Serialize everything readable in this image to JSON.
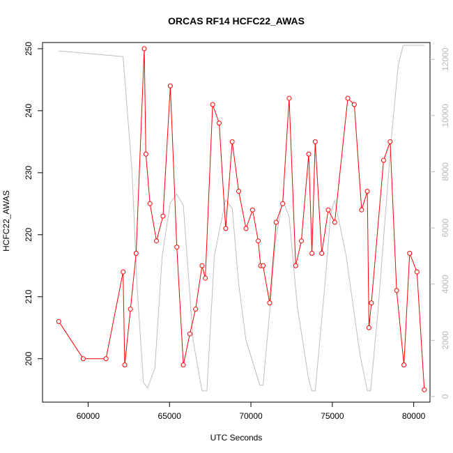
{
  "chart_data": {
    "type": "line",
    "title": "ORCAS RF14 HCFC22_AWAS",
    "xlabel": "UTC Seconds",
    "ylabel": "HCFC22_AWAS",
    "xlim": [
      57200,
      81000
    ],
    "ylim": [
      193,
      251
    ],
    "y2lim": [
      -200,
      12600
    ],
    "x_ticks": [
      60000,
      65000,
      70000,
      75000,
      80000
    ],
    "y_ticks": [
      200,
      210,
      220,
      230,
      240,
      250
    ],
    "y2_ticks": [
      0,
      2000,
      4000,
      6000,
      8000,
      10000,
      12000
    ],
    "series": [
      {
        "axis": "left",
        "color": "#ff0000",
        "marker": "open-circle",
        "x": [
          58200,
          59700,
          61100,
          62150,
          62250,
          62600,
          62950,
          63450,
          63550,
          63800,
          64200,
          64600,
          65050,
          65450,
          65850,
          66250,
          66600,
          67000,
          67200,
          67650,
          68050,
          68450,
          68850,
          69250,
          69700,
          70100,
          70450,
          70600,
          70750,
          71150,
          71550,
          71950,
          72350,
          72750,
          73100,
          73550,
          73750,
          73950,
          74350,
          74750,
          75150,
          75950,
          76350,
          76800,
          77150,
          77250,
          77400,
          78150,
          78550,
          78950,
          79400,
          79750,
          80200,
          80650
        ],
        "values": [
          206,
          200,
          200,
          214,
          199,
          208,
          217,
          250,
          233,
          225,
          219,
          223,
          244,
          218,
          199,
          204,
          208,
          215,
          213,
          241,
          238,
          221,
          235,
          227,
          221,
          224,
          219,
          215,
          215,
          209,
          222,
          225,
          242,
          215,
          219,
          233,
          217,
          235,
          217,
          224,
          222,
          242,
          241,
          224,
          227,
          205,
          209,
          232,
          235,
          211,
          199,
          217,
          214,
          195
        ]
      },
      {
        "axis": "right",
        "color": "#bebebe",
        "x": [
          58200,
          62150,
          62700,
          63000,
          63400,
          63650,
          64100,
          64550,
          65050,
          65450,
          65850,
          66450,
          67000,
          67300,
          67750,
          68450,
          68850,
          69250,
          69700,
          70550,
          70750,
          71150,
          71500,
          71950,
          72350,
          72850,
          73550,
          73750,
          73950,
          74550,
          74900,
          75150,
          75850,
          76700,
          77150,
          77350,
          77800,
          78600,
          79050,
          79350,
          80650
        ],
        "values": [
          12300,
          12100,
          8000,
          4000,
          500,
          300,
          1000,
          5000,
          6900,
          7200,
          6800,
          2000,
          200,
          200,
          5000,
          7000,
          6700,
          4000,
          2000,
          400,
          400,
          3000,
          5500,
          7000,
          6400,
          3200,
          600,
          200,
          200,
          4000,
          6500,
          7000,
          5000,
          1500,
          200,
          200,
          3000,
          9000,
          11800,
          12500,
          12500
        ]
      }
    ]
  }
}
